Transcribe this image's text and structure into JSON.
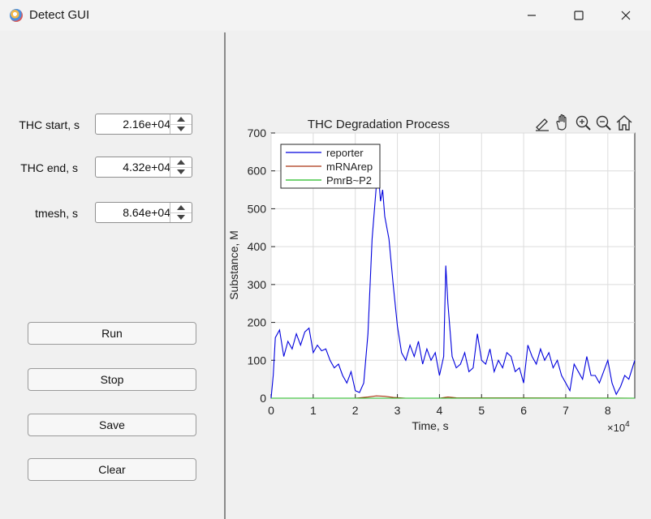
{
  "window": {
    "title": "Detect GUI"
  },
  "controls": {
    "thc_start": {
      "label": "THC start, s",
      "value": "2.16e+04"
    },
    "thc_end": {
      "label": "THC end, s",
      "value": "4.32e+04"
    },
    "tmesh": {
      "label": "tmesh, s",
      "value": "8.64e+04"
    }
  },
  "buttons": {
    "run": "Run",
    "stop": "Stop",
    "save": "Save",
    "clear": "Clear"
  },
  "toolbar_icons": [
    "brush-icon",
    "pan-hand-icon",
    "zoom-in-icon",
    "zoom-out-icon",
    "home-icon"
  ],
  "chart_data": {
    "type": "line",
    "title": "THC Degradation Process",
    "xlabel": "Time, s",
    "ylabel": "Substance, M",
    "x_exponent_label": "×10",
    "x_exponent": "4",
    "xlim": [
      0,
      8.64
    ],
    "ylim": [
      0,
      700
    ],
    "xticks": [
      0,
      1,
      2,
      3,
      4,
      5,
      6,
      7,
      8
    ],
    "yticks": [
      0,
      100,
      200,
      300,
      400,
      500,
      600,
      700
    ],
    "grid": true,
    "legend_position": "top-left",
    "series": [
      {
        "name": "reporter",
        "color": "#0000dd",
        "x": [
          0,
          0.05,
          0.1,
          0.2,
          0.3,
          0.4,
          0.5,
          0.6,
          0.7,
          0.8,
          0.9,
          1.0,
          1.1,
          1.2,
          1.3,
          1.4,
          1.5,
          1.6,
          1.7,
          1.8,
          1.9,
          2.0,
          2.1,
          2.2,
          2.3,
          2.4,
          2.5,
          2.55,
          2.6,
          2.65,
          2.7,
          2.8,
          2.9,
          3.0,
          3.1,
          3.2,
          3.3,
          3.4,
          3.5,
          3.6,
          3.7,
          3.8,
          3.9,
          4.0,
          4.1,
          4.15,
          4.2,
          4.3,
          4.4,
          4.5,
          4.6,
          4.7,
          4.8,
          4.9,
          5.0,
          5.1,
          5.2,
          5.3,
          5.4,
          5.5,
          5.6,
          5.7,
          5.8,
          5.9,
          6.0,
          6.1,
          6.2,
          6.3,
          6.4,
          6.5,
          6.6,
          6.7,
          6.8,
          6.9,
          7.0,
          7.1,
          7.2,
          7.3,
          7.4,
          7.5,
          7.6,
          7.7,
          7.8,
          7.9,
          8.0,
          8.1,
          8.2,
          8.3,
          8.4,
          8.5,
          8.64
        ],
        "y": [
          0,
          60,
          160,
          180,
          110,
          150,
          130,
          170,
          140,
          175,
          185,
          120,
          140,
          125,
          130,
          100,
          80,
          90,
          60,
          40,
          70,
          20,
          15,
          40,
          170,
          420,
          560,
          590,
          520,
          550,
          480,
          420,
          300,
          190,
          120,
          100,
          140,
          110,
          150,
          90,
          130,
          100,
          120,
          60,
          110,
          350,
          250,
          110,
          80,
          90,
          120,
          70,
          80,
          170,
          100,
          90,
          130,
          70,
          100,
          80,
          120,
          110,
          70,
          80,
          40,
          140,
          110,
          90,
          130,
          100,
          120,
          80,
          100,
          60,
          40,
          20,
          90,
          70,
          50,
          110,
          60,
          60,
          40,
          70,
          100,
          40,
          10,
          30,
          60,
          50,
          100
        ]
      },
      {
        "name": "mRNArep",
        "color": "#aa3311",
        "x": [
          0,
          2.0,
          2.3,
          2.5,
          2.7,
          2.9,
          3.2,
          4.0,
          4.2,
          4.4,
          8.64
        ],
        "y": [
          0,
          0,
          3,
          6,
          5,
          2,
          0,
          0,
          3,
          1,
          0
        ]
      },
      {
        "name": "PmrB~P2",
        "color": "#22bb22",
        "x": [
          0,
          8.64
        ],
        "y": [
          0,
          0
        ]
      }
    ]
  }
}
